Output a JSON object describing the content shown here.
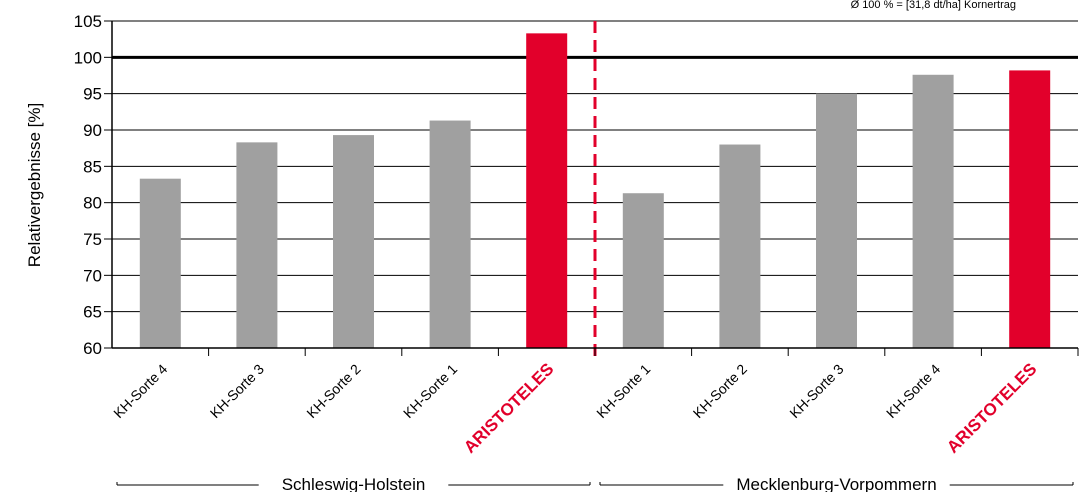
{
  "chart_data": {
    "type": "bar",
    "title": "",
    "note": "Ø 100 % = [31,8 dt/ha] Kornertrag",
    "ylabel": "Relativergebnisse [%]",
    "xlabel": "",
    "ylim": [
      60,
      105
    ],
    "yticks": [
      60,
      65,
      70,
      75,
      80,
      85,
      90,
      95,
      100,
      105
    ],
    "grid": true,
    "reference_line": 100,
    "categories": [
      "KH-Sorte 4",
      "KH-Sorte 3",
      "KH-Sorte 2",
      "KH-Sorte 1",
      "ARISTOTELES",
      "KH-Sorte 1",
      "KH-Sorte 2",
      "KH-Sorte 3",
      "KH-Sorte 4",
      "ARISTOTELES"
    ],
    "values": [
      83.3,
      88.3,
      89.3,
      91.3,
      103.3,
      81.3,
      88.0,
      95.0,
      97.6,
      98.2
    ],
    "highlight": [
      false,
      false,
      false,
      false,
      true,
      false,
      false,
      false,
      false,
      true
    ],
    "groups": [
      {
        "name": "Schleswig-Holstein",
        "count": 5
      },
      {
        "name": "Mecklenburg-Vorpommern",
        "count": 5
      }
    ],
    "colors": {
      "bar": "#a0a0a0",
      "highlight": "#e2002b",
      "divider": "#e2002b",
      "axis": "#000000"
    }
  }
}
